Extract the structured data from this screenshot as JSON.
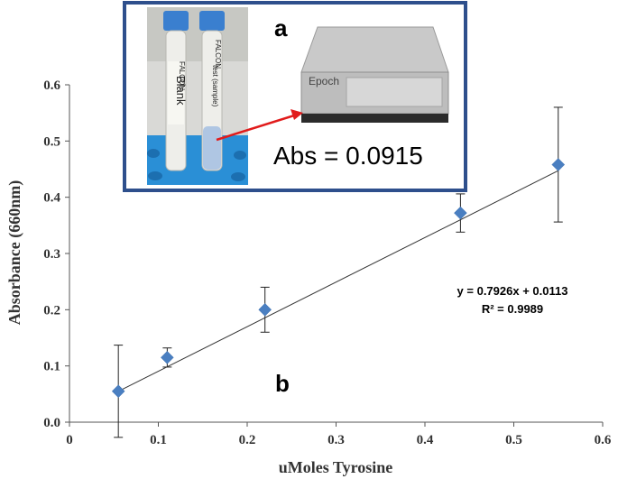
{
  "chart_data": {
    "type": "scatter",
    "xlabel": "uMoles Tyrosine",
    "ylabel": "Absorbance (660nm)",
    "xlim": [
      0,
      0.6
    ],
    "ylim": [
      0,
      0.6
    ],
    "x_ticks": [
      "0",
      "0.1",
      "0.2",
      "0.3",
      "0.4",
      "0.5",
      "0.6"
    ],
    "y_ticks": [
      "0.0",
      "0.1",
      "0.2",
      "0.3",
      "0.4",
      "0.5",
      "0.6"
    ],
    "series": [
      {
        "x": [
          0.055,
          0.11,
          0.22,
          0.44,
          0.55
        ],
        "y": [
          0.055,
          0.115,
          0.2,
          0.372,
          0.458
        ],
        "error": [
          0.082,
          0.017,
          0.04,
          0.034,
          0.102
        ],
        "color": "#4a7fc1"
      }
    ],
    "trendline": {
      "slope": 0.7926,
      "intercept": 0.0113,
      "x_range": [
        0.055,
        0.55
      ]
    },
    "equation": "y = 0.7926x + 0.0113",
    "r_squared": "R² = 0.9989",
    "panel_b_label": "b",
    "grid": false
  },
  "inset": {
    "panel_a_label": "a",
    "abs_text": "Abs = 0.0915",
    "device_brand": "Epoch",
    "tube_brand": "FALCON",
    "tube_label_left": "Blank",
    "tube_label_right": "test (sample)",
    "border_color": "#2e4f8c"
  }
}
